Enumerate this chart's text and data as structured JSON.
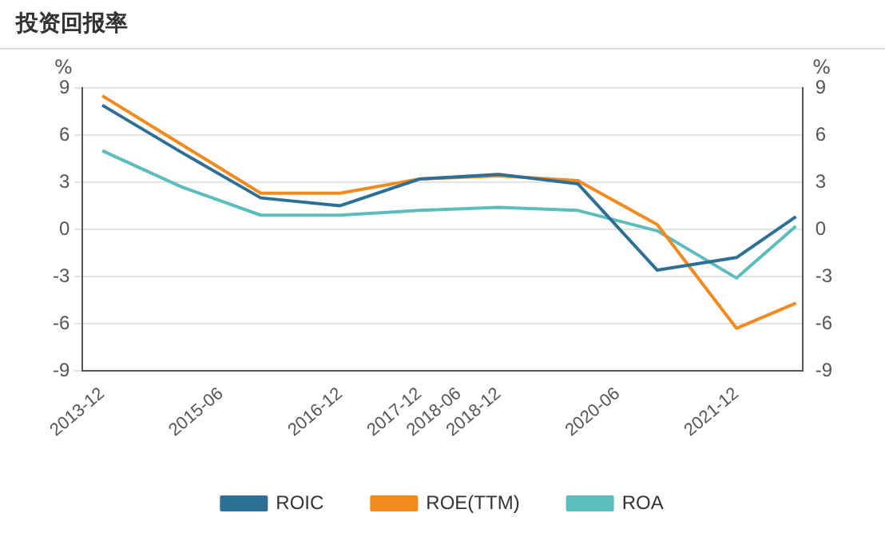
{
  "chart_data": {
    "type": "line",
    "title": "投资回报率",
    "ylabel": "%",
    "y2label": "%",
    "x": [
      "2013-12",
      "2014-12",
      "2015-12",
      "2016-12",
      "2017-12",
      "2018-12",
      "2019-12",
      "2020-12",
      "2021-12",
      "2022-09"
    ],
    "xlim": [
      "2013-09",
      "2022-10"
    ],
    "xticks": [
      "2013-12",
      "2015-06",
      "2016-12",
      "2017-12",
      "2018-06",
      "2018-12",
      "2020-06",
      "2021-12"
    ],
    "ylim": [
      -9,
      9
    ],
    "yticks": [
      -9,
      -6,
      -3,
      0,
      3,
      6,
      9
    ],
    "y2lim": [
      -9,
      9
    ],
    "y2ticks": [
      -9,
      -6,
      -3,
      0,
      3,
      6,
      9
    ],
    "series": [
      {
        "name": "ROIC",
        "color": "#2e6f96",
        "values": [
          7.9,
          4.9,
          2.0,
          1.5,
          3.2,
          3.5,
          2.9,
          -2.6,
          -1.8,
          0.8
        ]
      },
      {
        "name": "ROE(TTM)",
        "color": "#f28a1e",
        "values": [
          8.5,
          5.4,
          2.3,
          2.3,
          3.2,
          3.4,
          3.1,
          0.3,
          -6.3,
          -4.7
        ]
      },
      {
        "name": "ROA",
        "color": "#5bbdbd",
        "values": [
          5.0,
          2.7,
          0.9,
          0.9,
          1.2,
          1.4,
          1.2,
          -0.1,
          -3.1,
          0.2
        ]
      }
    ],
    "grid": "y",
    "legend": "bottom",
    "marker": "none",
    "line_style": "solid"
  }
}
